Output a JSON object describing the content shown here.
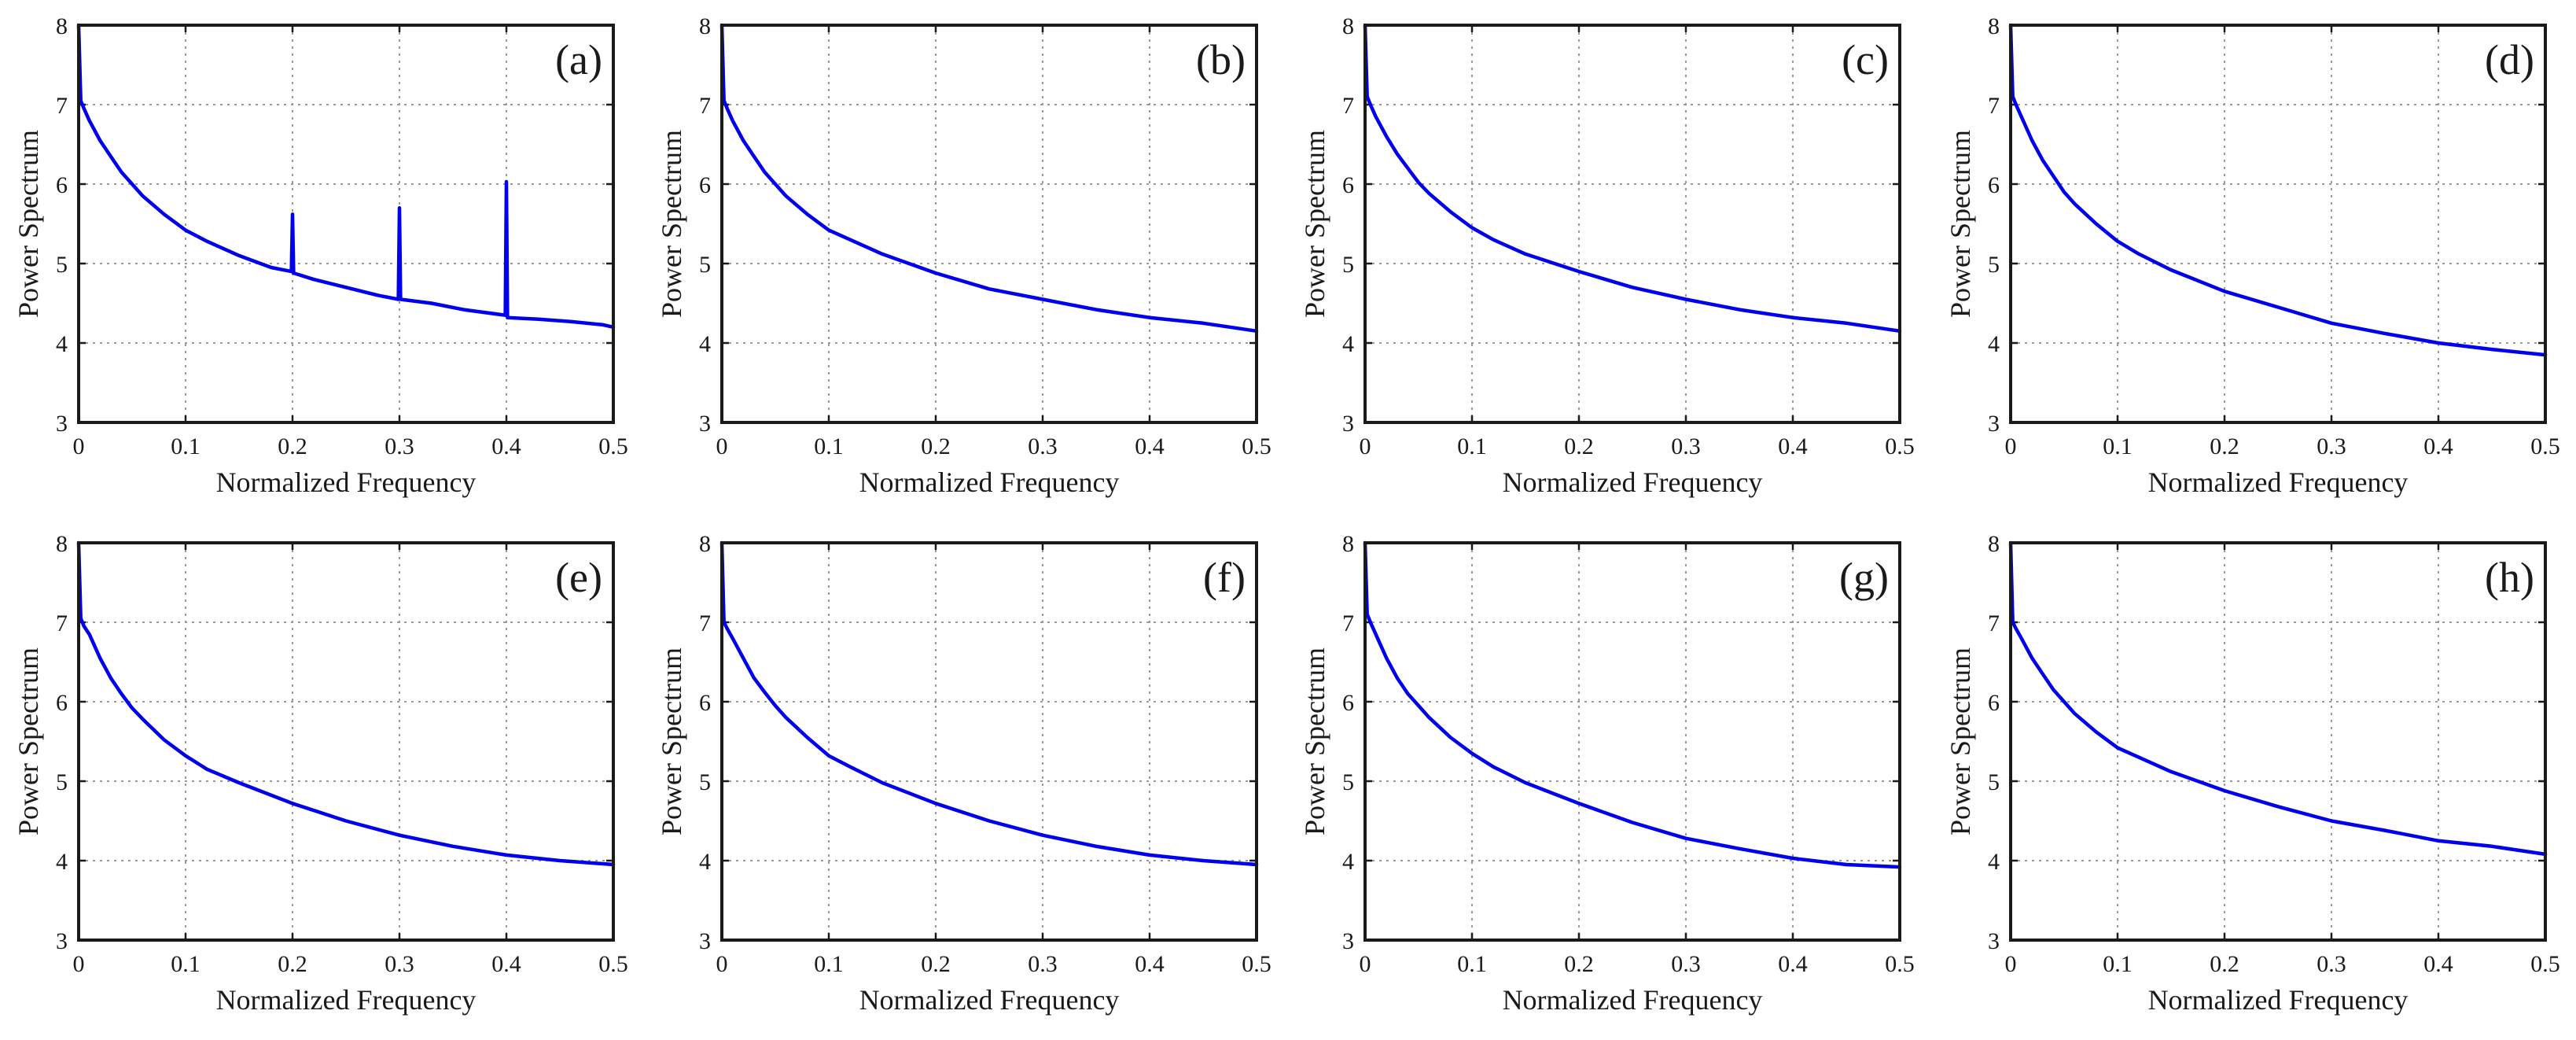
{
  "figure": {
    "line_color": "#0000ee"
  },
  "chart_data": [
    {
      "panel": "(a)",
      "type": "line",
      "xlabel": "Normalized Frequency",
      "ylabel": "Power Spectrum",
      "xlim": [
        0,
        0.5
      ],
      "ylim": [
        3,
        8
      ],
      "xticks": [
        "0",
        "0.1",
        "0.2",
        "0.3",
        "0.4",
        "0.5"
      ],
      "yticks": [
        "3",
        "4",
        "5",
        "6",
        "7",
        "8"
      ],
      "grid": true,
      "series": [
        {
          "name": "spectrum",
          "x": [
            0,
            0.002,
            0.005,
            0.01,
            0.02,
            0.03,
            0.04,
            0.05,
            0.06,
            0.08,
            0.1,
            0.12,
            0.15,
            0.18,
            0.199,
            0.2,
            0.201,
            0.22,
            0.25,
            0.28,
            0.299,
            0.3,
            0.301,
            0.33,
            0.36,
            0.399,
            0.4,
            0.401,
            0.43,
            0.46,
            0.49,
            0.5
          ],
          "y": [
            8.0,
            7.05,
            6.95,
            6.8,
            6.55,
            6.35,
            6.15,
            6.0,
            5.85,
            5.62,
            5.42,
            5.28,
            5.1,
            4.95,
            4.9,
            5.62,
            4.88,
            4.8,
            4.7,
            4.6,
            4.55,
            5.7,
            4.55,
            4.5,
            4.42,
            4.35,
            6.03,
            4.32,
            4.3,
            4.27,
            4.23,
            4.2
          ]
        }
      ]
    },
    {
      "panel": "(b)",
      "type": "line",
      "xlabel": "Normalized Frequency",
      "ylabel": "Power Spectrum",
      "xlim": [
        0,
        0.5
      ],
      "ylim": [
        3,
        8
      ],
      "xticks": [
        "0",
        "0.1",
        "0.2",
        "0.3",
        "0.4",
        "0.5"
      ],
      "yticks": [
        "3",
        "4",
        "5",
        "6",
        "7",
        "8"
      ],
      "grid": true,
      "series": [
        {
          "name": "spectrum",
          "x": [
            0,
            0.002,
            0.005,
            0.01,
            0.02,
            0.03,
            0.04,
            0.05,
            0.06,
            0.08,
            0.1,
            0.12,
            0.15,
            0.2,
            0.25,
            0.3,
            0.35,
            0.4,
            0.45,
            0.5
          ],
          "y": [
            8.0,
            7.05,
            6.95,
            6.8,
            6.55,
            6.35,
            6.15,
            6.0,
            5.85,
            5.62,
            5.42,
            5.3,
            5.12,
            4.88,
            4.68,
            4.55,
            4.42,
            4.32,
            4.25,
            4.15
          ]
        }
      ]
    },
    {
      "panel": "(c)",
      "type": "line",
      "xlabel": "Normalized Frequency",
      "ylabel": "Power Spectrum",
      "xlim": [
        0,
        0.5
      ],
      "ylim": [
        3,
        8
      ],
      "xticks": [
        "0",
        "0.1",
        "0.2",
        "0.3",
        "0.4",
        "0.5"
      ],
      "yticks": [
        "3",
        "4",
        "5",
        "6",
        "7",
        "8"
      ],
      "grid": true,
      "series": [
        {
          "name": "spectrum",
          "x": [
            0,
            0.002,
            0.005,
            0.01,
            0.02,
            0.03,
            0.04,
            0.05,
            0.06,
            0.08,
            0.1,
            0.12,
            0.15,
            0.2,
            0.25,
            0.3,
            0.35,
            0.4,
            0.45,
            0.5
          ],
          "y": [
            8.0,
            7.1,
            7.0,
            6.85,
            6.6,
            6.38,
            6.2,
            6.02,
            5.88,
            5.65,
            5.45,
            5.3,
            5.12,
            4.9,
            4.7,
            4.55,
            4.42,
            4.32,
            4.25,
            4.15
          ]
        }
      ]
    },
    {
      "panel": "(d)",
      "type": "line",
      "xlabel": "Normalized Frequency",
      "ylabel": "Power Spectrum",
      "xlim": [
        0,
        0.5
      ],
      "ylim": [
        3,
        8
      ],
      "xticks": [
        "0",
        "0.1",
        "0.2",
        "0.3",
        "0.4",
        "0.5"
      ],
      "yticks": [
        "3",
        "4",
        "5",
        "6",
        "7",
        "8"
      ],
      "grid": true,
      "series": [
        {
          "name": "spectrum",
          "x": [
            0,
            0.002,
            0.005,
            0.01,
            0.02,
            0.03,
            0.04,
            0.05,
            0.06,
            0.08,
            0.1,
            0.12,
            0.15,
            0.2,
            0.25,
            0.3,
            0.35,
            0.4,
            0.45,
            0.5
          ],
          "y": [
            8.0,
            7.1,
            7.0,
            6.85,
            6.55,
            6.3,
            6.1,
            5.9,
            5.75,
            5.5,
            5.28,
            5.12,
            4.92,
            4.65,
            4.45,
            4.25,
            4.12,
            4.0,
            3.92,
            3.85
          ]
        }
      ]
    },
    {
      "panel": "(e)",
      "type": "line",
      "xlabel": "Normalized Frequency",
      "ylabel": "Power Spectrum",
      "xlim": [
        0,
        0.5
      ],
      "ylim": [
        3,
        8
      ],
      "xticks": [
        "0",
        "0.1",
        "0.2",
        "0.3",
        "0.4",
        "0.5"
      ],
      "yticks": [
        "3",
        "4",
        "5",
        "6",
        "7",
        "8"
      ],
      "grid": true,
      "series": [
        {
          "name": "spectrum",
          "x": [
            0,
            0.002,
            0.005,
            0.01,
            0.02,
            0.03,
            0.04,
            0.05,
            0.06,
            0.08,
            0.1,
            0.12,
            0.15,
            0.2,
            0.25,
            0.3,
            0.35,
            0.4,
            0.45,
            0.5
          ],
          "y": [
            8.0,
            7.05,
            6.95,
            6.85,
            6.55,
            6.3,
            6.1,
            5.92,
            5.78,
            5.52,
            5.32,
            5.15,
            4.98,
            4.72,
            4.5,
            4.32,
            4.18,
            4.07,
            4.0,
            3.95
          ]
        }
      ]
    },
    {
      "panel": "(f)",
      "type": "line",
      "xlabel": "Normalized Frequency",
      "ylabel": "Power Spectrum",
      "xlim": [
        0,
        0.5
      ],
      "ylim": [
        3,
        8
      ],
      "xticks": [
        "0",
        "0.1",
        "0.2",
        "0.3",
        "0.4",
        "0.5"
      ],
      "yticks": [
        "3",
        "4",
        "5",
        "6",
        "7",
        "8"
      ],
      "grid": true,
      "series": [
        {
          "name": "spectrum",
          "x": [
            0,
            0.002,
            0.005,
            0.01,
            0.02,
            0.03,
            0.04,
            0.05,
            0.06,
            0.08,
            0.1,
            0.12,
            0.15,
            0.2,
            0.25,
            0.3,
            0.35,
            0.4,
            0.45,
            0.5
          ],
          "y": [
            8.0,
            7.0,
            6.92,
            6.8,
            6.55,
            6.3,
            6.12,
            5.95,
            5.8,
            5.55,
            5.32,
            5.18,
            4.98,
            4.72,
            4.5,
            4.32,
            4.18,
            4.07,
            4.0,
            3.95
          ]
        }
      ]
    },
    {
      "panel": "(g)",
      "type": "line",
      "xlabel": "Normalized Frequency",
      "ylabel": "Power Spectrum",
      "xlim": [
        0,
        0.5
      ],
      "ylim": [
        3,
        8
      ],
      "xticks": [
        "0",
        "0.1",
        "0.2",
        "0.3",
        "0.4",
        "0.5"
      ],
      "yticks": [
        "3",
        "4",
        "5",
        "6",
        "7",
        "8"
      ],
      "grid": true,
      "series": [
        {
          "name": "spectrum",
          "x": [
            0,
            0.002,
            0.005,
            0.01,
            0.02,
            0.03,
            0.04,
            0.05,
            0.06,
            0.08,
            0.1,
            0.12,
            0.15,
            0.2,
            0.25,
            0.3,
            0.35,
            0.4,
            0.45,
            0.5
          ],
          "y": [
            8.0,
            7.1,
            7.0,
            6.85,
            6.55,
            6.3,
            6.1,
            5.95,
            5.8,
            5.55,
            5.35,
            5.18,
            4.98,
            4.72,
            4.48,
            4.28,
            4.15,
            4.03,
            3.95,
            3.92
          ]
        }
      ]
    },
    {
      "panel": "(h)",
      "type": "line",
      "xlabel": "Normalized Frequency",
      "ylabel": "Power Spectrum",
      "xlim": [
        0,
        0.5
      ],
      "ylim": [
        3,
        8
      ],
      "xticks": [
        "0",
        "0.1",
        "0.2",
        "0.3",
        "0.4",
        "0.5"
      ],
      "yticks": [
        "3",
        "4",
        "5",
        "6",
        "7",
        "8"
      ],
      "grid": true,
      "series": [
        {
          "name": "spectrum",
          "x": [
            0,
            0.002,
            0.005,
            0.01,
            0.02,
            0.03,
            0.04,
            0.05,
            0.06,
            0.08,
            0.1,
            0.12,
            0.15,
            0.2,
            0.25,
            0.3,
            0.35,
            0.4,
            0.45,
            0.5
          ],
          "y": [
            8.0,
            7.0,
            6.92,
            6.8,
            6.55,
            6.35,
            6.15,
            6.0,
            5.85,
            5.62,
            5.42,
            5.3,
            5.12,
            4.88,
            4.68,
            4.5,
            4.38,
            4.25,
            4.18,
            4.08
          ]
        }
      ]
    }
  ]
}
